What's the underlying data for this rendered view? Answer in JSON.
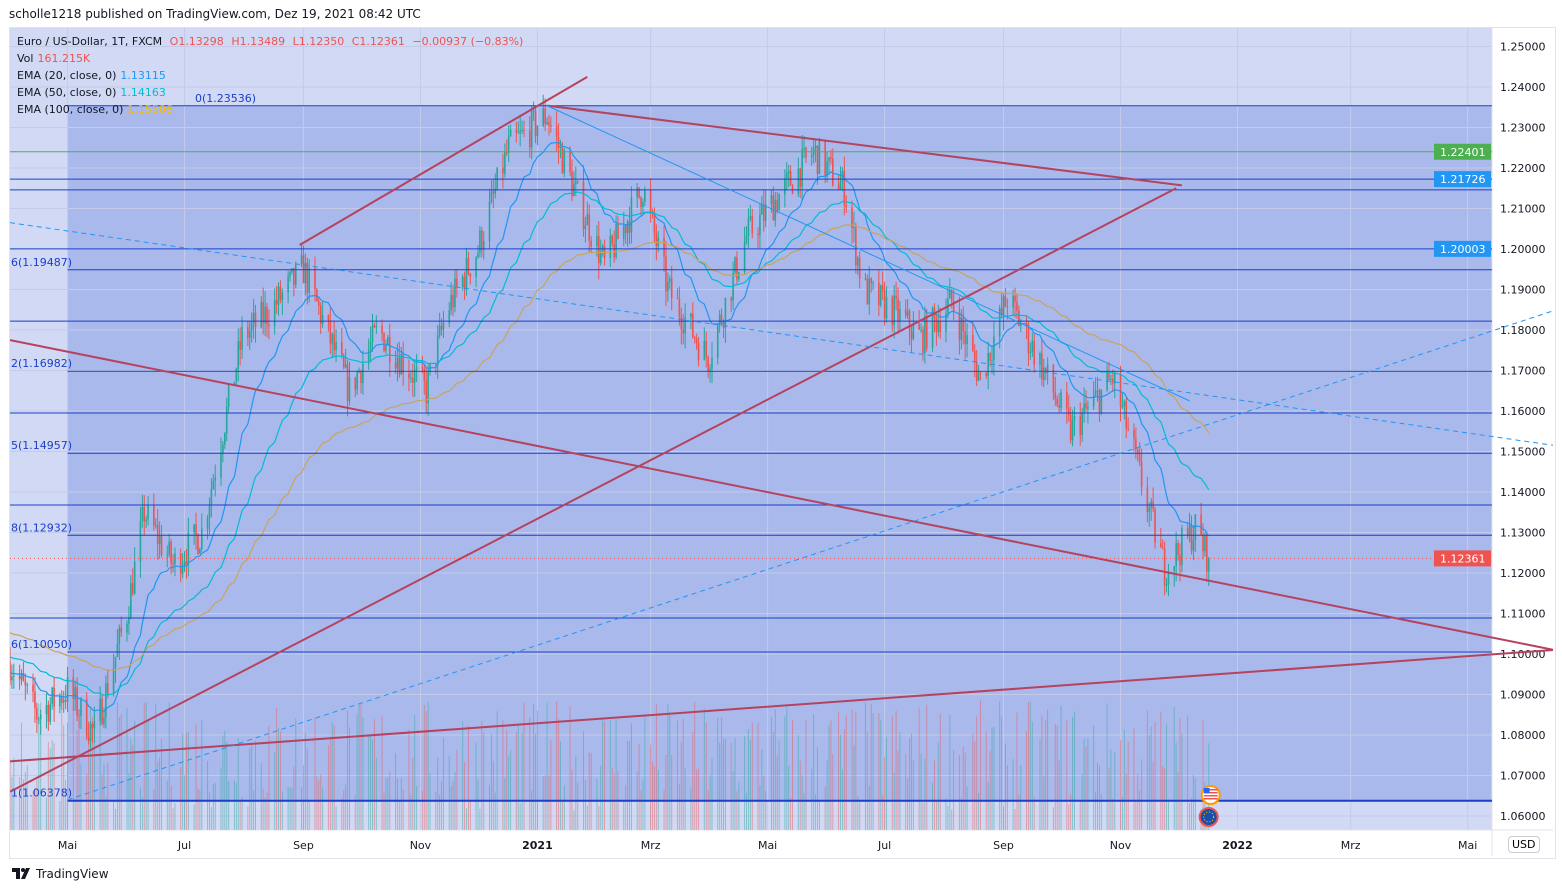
{
  "header": {
    "published": "scholle1218 published on TradingView.com, Dez 19, 2021 08:42 UTC"
  },
  "legend": {
    "symbol": "Euro / US-Dollar, 1T, FXCM",
    "open": "O1.13298",
    "high": "H1.13489",
    "low": "L1.12350",
    "close": "C1.12361",
    "change": "−0.00937 (−0.83%)",
    "vol_label": "Vol",
    "vol_value": "161.215K",
    "ema20_label": "EMA (20, close, 0)",
    "ema20_value": "1.13115",
    "ema50_label": "EMA (50, close, 0)",
    "ema50_value": "1.14163",
    "ema100_label": "EMA (100, close, 0)",
    "ema100_value": "1.15506"
  },
  "currency": "USD",
  "brand": "TradingView",
  "colors": {
    "up": "#26a69a",
    "down": "#ef5350",
    "ema20": "#2196f3",
    "ema50": "#00bcd4",
    "ema100": "#c9a35c",
    "trend": "#b5435f",
    "fib": "#1a3fc8",
    "bg": "#d1d9f4",
    "fibFill": "#aab9ec"
  },
  "chart_data": {
    "type": "candlestick",
    "symbol": "EURUSD",
    "ylim": [
      1.055,
      1.252
    ],
    "y_ticks": [
      "1.25000",
      "1.24000",
      "1.23000",
      "1.22000",
      "1.21000",
      "1.20000",
      "1.19000",
      "1.18000",
      "1.17000",
      "1.16000",
      "1.15000",
      "1.14000",
      "1.13000",
      "1.12000",
      "1.11000",
      "1.10000",
      "1.09000",
      "1.08000",
      "1.07000",
      "1.06000"
    ],
    "x_ticks": [
      {
        "date": "2020-05-01",
        "label": "Mai"
      },
      {
        "date": "2020-07-01",
        "label": "Jul"
      },
      {
        "date": "2020-09-01",
        "label": "Sep"
      },
      {
        "date": "2020-11-01",
        "label": "Nov"
      },
      {
        "date": "2021-01-01",
        "label": "2021",
        "bold": true
      },
      {
        "date": "2021-03-01",
        "label": "Mrz"
      },
      {
        "date": "2021-05-01",
        "label": "Mai"
      },
      {
        "date": "2021-07-01",
        "label": "Jul"
      },
      {
        "date": "2021-09-01",
        "label": "Sep"
      },
      {
        "date": "2021-11-01",
        "label": "Nov"
      },
      {
        "date": "2022-01-01",
        "label": "2022",
        "bold": true
      },
      {
        "date": "2022-03-01",
        "label": "Mrz"
      },
      {
        "date": "2022-05-01",
        "label": "Mai"
      }
    ],
    "x_range": [
      "2020-04-01",
      "2022-06-15"
    ],
    "close_path": [
      [
        "2020-04-01",
        1.098
      ],
      [
        "2020-04-15",
        1.085
      ],
      [
        "2020-05-01",
        1.091
      ],
      [
        "2020-05-15",
        1.08
      ],
      [
        "2020-06-01",
        1.11
      ],
      [
        "2020-06-10",
        1.135
      ],
      [
        "2020-06-25",
        1.122
      ],
      [
        "2020-07-10",
        1.13
      ],
      [
        "2020-07-31",
        1.178
      ],
      [
        "2020-08-15",
        1.185
      ],
      [
        "2020-09-01",
        1.195
      ],
      [
        "2020-09-25",
        1.165
      ],
      [
        "2020-10-10",
        1.18
      ],
      [
        "2020-11-04",
        1.165
      ],
      [
        "2020-11-15",
        1.185
      ],
      [
        "2020-12-01",
        1.2
      ],
      [
        "2020-12-17",
        1.225
      ],
      [
        "2021-01-06",
        1.233
      ],
      [
        "2021-01-20",
        1.215
      ],
      [
        "2021-02-05",
        1.196
      ],
      [
        "2021-02-25",
        1.215
      ],
      [
        "2021-03-10",
        1.19
      ],
      [
        "2021-03-31",
        1.173
      ],
      [
        "2021-04-20",
        1.203
      ],
      [
        "2021-05-10",
        1.215
      ],
      [
        "2021-05-25",
        1.224
      ],
      [
        "2021-06-10",
        1.215
      ],
      [
        "2021-06-20",
        1.19
      ],
      [
        "2021-07-05",
        1.185
      ],
      [
        "2021-07-20",
        1.178
      ],
      [
        "2021-08-05",
        1.187
      ],
      [
        "2021-08-20",
        1.168
      ],
      [
        "2021-09-03",
        1.188
      ],
      [
        "2021-09-20",
        1.172
      ],
      [
        "2021-10-06",
        1.155
      ],
      [
        "2021-10-28",
        1.168
      ],
      [
        "2021-11-05",
        1.155
      ],
      [
        "2021-11-24",
        1.121
      ],
      [
        "2021-12-10",
        1.131
      ],
      [
        "2021-12-17",
        1.12361
      ]
    ],
    "last_price": "1.12361",
    "price_labels": [
      {
        "value": "1.22401",
        "color": "#4caf50"
      },
      {
        "value": "1.21726",
        "color": "#2196f3"
      },
      {
        "value": "1.20003",
        "color": "#2196f3"
      },
      {
        "value": "1.12361",
        "color": "#ef5350"
      }
    ],
    "fib_levels": [
      {
        "label": "0(1.23536)",
        "price": 1.23536
      },
      {
        "price": 1.2146
      },
      {
        "label": "6(1.19487)",
        "price": 1.19487
      },
      {
        "price": 1.1822
      },
      {
        "label": "2(1.16982)",
        "price": 1.16982
      },
      {
        "price": 1.1595
      },
      {
        "label": "5(1.14957)",
        "price": 1.14957
      },
      {
        "price": 1.1368
      },
      {
        "label": "8(1.12932)",
        "price": 1.12932
      },
      {
        "price": 1.1089
      },
      {
        "label": "6(1.10050)",
        "price": 1.1005
      },
      {
        "label": "1(1.06378)",
        "price": 1.06378
      }
    ],
    "hlines": [
      {
        "price": 1.22401,
        "color": "#4caf50"
      },
      {
        "price": 1.21726,
        "color": "#1a3fc8"
      },
      {
        "price": 1.20003,
        "color": "#1a3fc8"
      }
    ],
    "trendlines": [
      {
        "color": "trend",
        "from": [
          "2020-04-01",
          1.1775
        ],
        "to": [
          "2022-06-15",
          1.101
        ]
      },
      {
        "color": "trend",
        "from": [
          "2020-04-01",
          1.0735
        ],
        "to": [
          "2022-06-15",
          1.101
        ]
      },
      {
        "color": "trend",
        "from": [
          "2020-04-01",
          1.066
        ],
        "to": [
          "2021-11-30",
          1.215
        ]
      },
      {
        "color": "trend",
        "from": [
          "2020-08-30",
          1.201
        ],
        "to": [
          "2021-01-27",
          1.2425
        ]
      },
      {
        "color": "trend",
        "from": [
          "2021-01-06",
          1.2354
        ],
        "to": [
          "2021-12-03",
          1.2157
        ]
      },
      {
        "color": "ema20",
        "from": [
          "2021-01-06",
          1.2354
        ],
        "to": [
          "2021-12-07",
          1.1625
        ]
      },
      {
        "color": "ema20",
        "dashed": true,
        "from": [
          "2020-04-01",
          1.2065
        ],
        "to": [
          "2022-06-15",
          1.1515
        ]
      },
      {
        "color": "ema20",
        "dashed": true,
        "from": [
          "2020-05-01",
          1.064
        ],
        "to": [
          "2022-06-15",
          1.1848
        ]
      }
    ]
  }
}
